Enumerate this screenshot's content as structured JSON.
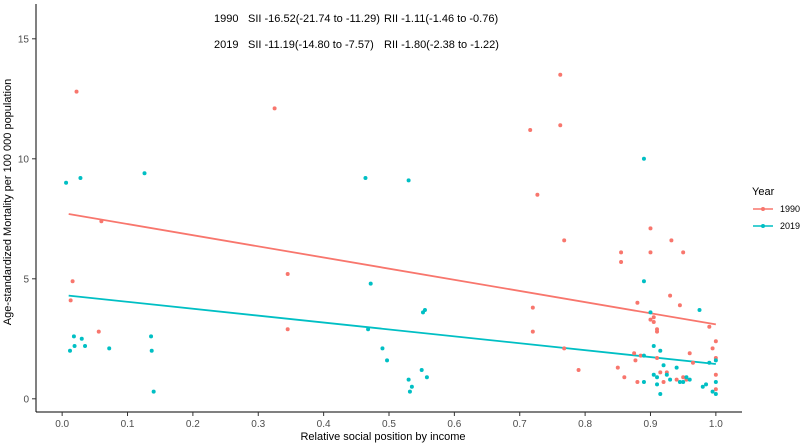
{
  "chart_data": {
    "type": "scatter",
    "title": "",
    "xlabel": "Relative social position by income",
    "ylabel": "Age-standardized Mortality per 100 000 population",
    "xlim": [
      0.0,
      1.0
    ],
    "ylim": [
      0,
      15
    ],
    "x_ticks": [
      "0.0",
      "0.1",
      "0.2",
      "0.3",
      "0.4",
      "0.5",
      "0.6",
      "0.7",
      "0.8",
      "0.9",
      "1.0"
    ],
    "y_ticks": [
      "0",
      "5",
      "10",
      "15"
    ],
    "grid": false,
    "legend": {
      "title": "Year",
      "position": "right"
    },
    "annotations": [
      {
        "year": "1990",
        "sii": "SII -16.52(-21.74 to -11.29)",
        "rii": "RII -1.11(-1.46 to -0.76)"
      },
      {
        "year": "2019",
        "sii": "SII -11.19(-14.80 to -7.57)",
        "rii": "RII -1.80(-2.38 to -1.22)"
      }
    ],
    "series": [
      {
        "name": "1990",
        "color": "#F8766D",
        "fit_line": [
          [
            0.01,
            7.7
          ],
          [
            1.0,
            3.1
          ]
        ],
        "points": [
          [
            0.013,
            4.1
          ],
          [
            0.016,
            4.9
          ],
          [
            0.022,
            12.8
          ],
          [
            0.056,
            2.8
          ],
          [
            0.06,
            7.4
          ],
          [
            0.325,
            12.1
          ],
          [
            0.345,
            5.2
          ],
          [
            0.345,
            2.9
          ],
          [
            0.716,
            11.2
          ],
          [
            0.72,
            2.8
          ],
          [
            0.72,
            3.8
          ],
          [
            0.727,
            8.5
          ],
          [
            0.762,
            13.5
          ],
          [
            0.762,
            11.4
          ],
          [
            0.768,
            6.6
          ],
          [
            0.768,
            2.1
          ],
          [
            0.79,
            1.2
          ],
          [
            0.85,
            1.3
          ],
          [
            0.855,
            6.1
          ],
          [
            0.855,
            5.7
          ],
          [
            0.86,
            0.9
          ],
          [
            0.875,
            1.9
          ],
          [
            0.877,
            1.6
          ],
          [
            0.88,
            4.0
          ],
          [
            0.88,
            0.7
          ],
          [
            0.885,
            1.8
          ],
          [
            0.9,
            7.1
          ],
          [
            0.9,
            6.1
          ],
          [
            0.9,
            3.3
          ],
          [
            0.905,
            3.2
          ],
          [
            0.905,
            3.4
          ],
          [
            0.91,
            2.8
          ],
          [
            0.91,
            2.9
          ],
          [
            0.91,
            1.7
          ],
          [
            0.915,
            1.1
          ],
          [
            0.92,
            0.7
          ],
          [
            0.925,
            1.1
          ],
          [
            0.93,
            4.3
          ],
          [
            0.932,
            6.6
          ],
          [
            0.94,
            0.8
          ],
          [
            0.945,
            3.9
          ],
          [
            0.95,
            6.1
          ],
          [
            0.95,
            0.9
          ],
          [
            0.955,
            0.8
          ],
          [
            0.96,
            1.9
          ],
          [
            0.965,
            1.5
          ],
          [
            0.99,
            3.0
          ],
          [
            0.995,
            2.1
          ],
          [
            1.0,
            2.4
          ],
          [
            1.0,
            1.7
          ],
          [
            1.0,
            1.0
          ],
          [
            1.0,
            0.4
          ]
        ]
      },
      {
        "name": "2019",
        "color": "#00BFC4",
        "fit_line": [
          [
            0.01,
            4.3
          ],
          [
            1.0,
            1.45
          ]
        ],
        "points": [
          [
            0.006,
            9.0
          ],
          [
            0.012,
            2.0
          ],
          [
            0.018,
            2.6
          ],
          [
            0.019,
            2.2
          ],
          [
            0.028,
            9.2
          ],
          [
            0.03,
            2.5
          ],
          [
            0.035,
            2.2
          ],
          [
            0.072,
            2.1
          ],
          [
            0.126,
            9.4
          ],
          [
            0.136,
            2.6
          ],
          [
            0.137,
            2.0
          ],
          [
            0.14,
            0.3
          ],
          [
            0.464,
            9.2
          ],
          [
            0.468,
            2.9
          ],
          [
            0.472,
            4.8
          ],
          [
            0.49,
            2.1
          ],
          [
            0.497,
            1.6
          ],
          [
            0.53,
            9.1
          ],
          [
            0.53,
            0.8
          ],
          [
            0.532,
            0.3
          ],
          [
            0.535,
            0.5
          ],
          [
            0.55,
            1.2
          ],
          [
            0.552,
            3.6
          ],
          [
            0.555,
            3.7
          ],
          [
            0.558,
            0.9
          ],
          [
            0.89,
            10.0
          ],
          [
            0.89,
            4.9
          ],
          [
            0.89,
            1.8
          ],
          [
            0.89,
            0.7
          ],
          [
            0.9,
            3.6
          ],
          [
            0.905,
            2.2
          ],
          [
            0.905,
            1.0
          ],
          [
            0.91,
            0.9
          ],
          [
            0.91,
            0.6
          ],
          [
            0.915,
            2.0
          ],
          [
            0.915,
            0.2
          ],
          [
            0.92,
            1.4
          ],
          [
            0.925,
            1.0
          ],
          [
            0.93,
            0.8
          ],
          [
            0.94,
            1.3
          ],
          [
            0.945,
            0.7
          ],
          [
            0.95,
            0.7
          ],
          [
            0.955,
            0.9
          ],
          [
            0.96,
            0.8
          ],
          [
            0.975,
            3.7
          ],
          [
            0.98,
            0.5
          ],
          [
            0.985,
            0.6
          ],
          [
            0.99,
            1.5
          ],
          [
            0.995,
            0.3
          ],
          [
            1.0,
            1.6
          ],
          [
            1.0,
            0.7
          ],
          [
            1.0,
            0.2
          ]
        ]
      }
    ]
  }
}
